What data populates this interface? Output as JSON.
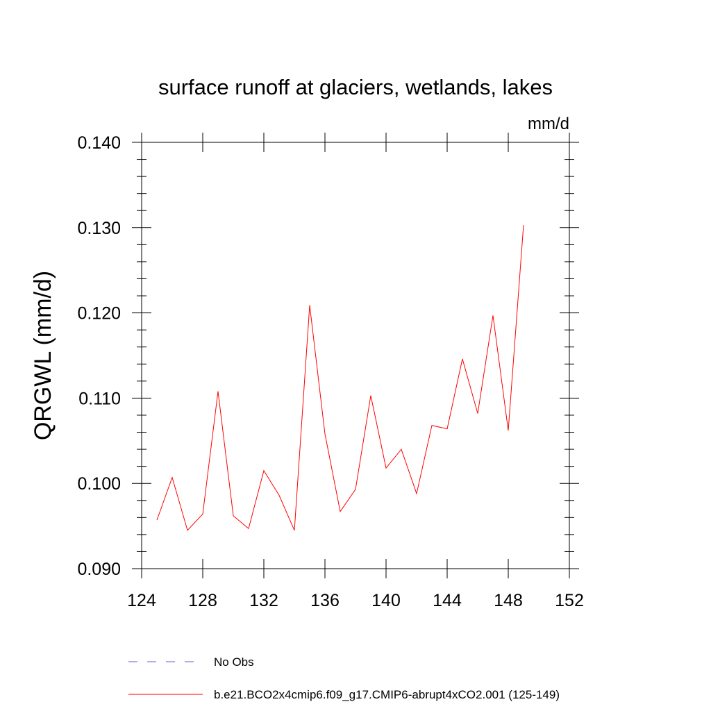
{
  "chart_data": {
    "type": "line",
    "title": "surface runoff at glaciers, wetlands, lakes",
    "units": "mm/d",
    "ylabel": "QRGWL  (mm/d)",
    "xlabel": "",
    "xlim": [
      124,
      152
    ],
    "ylim": [
      0.09,
      0.14
    ],
    "xticks": [
      124,
      128,
      132,
      136,
      140,
      144,
      148,
      152
    ],
    "xtick_labels": [
      "124",
      "128",
      "132",
      "136",
      "140",
      "144",
      "148",
      "152"
    ],
    "yticks": [
      0.09,
      0.1,
      0.11,
      0.12,
      0.13,
      0.14
    ],
    "ytick_labels": [
      "0.090",
      "0.100",
      "0.110",
      "0.120",
      "0.130",
      "0.140"
    ],
    "grid": false,
    "legend_position": "bottom",
    "series": [
      {
        "name": "b.e21.BCO2x4cmip6.f09_g17.CMIP6-abrupt4xCO2.001 (125-149)",
        "color": "#ff0000",
        "style": "solid",
        "x": [
          125,
          126,
          127,
          128,
          129,
          130,
          131,
          132,
          133,
          134,
          135,
          136,
          137,
          138,
          139,
          140,
          141,
          142,
          143,
          144,
          145,
          146,
          147,
          148,
          149
        ],
        "values": [
          0.0957,
          0.1007,
          0.0945,
          0.0964,
          0.1108,
          0.0962,
          0.0947,
          0.1015,
          0.0986,
          0.0945,
          0.1209,
          0.1058,
          0.0967,
          0.0993,
          0.1103,
          0.1018,
          0.104,
          0.0988,
          0.1068,
          0.1064,
          0.1146,
          0.1082,
          0.1197,
          0.1062,
          0.1303
        ]
      }
    ],
    "legend": [
      {
        "label": "No Obs",
        "color": "#6a5acd",
        "style": "dashed"
      },
      {
        "label": "b.e21.BCO2x4cmip6.f09_g17.CMIP6-abrupt4xCO2.001 (125-149)",
        "color": "#ff0000",
        "style": "solid"
      }
    ]
  }
}
